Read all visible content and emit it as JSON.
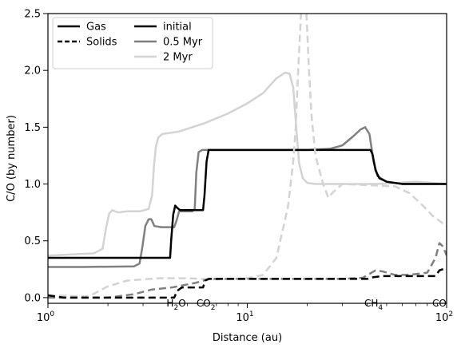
{
  "chart_data": {
    "type": "line",
    "xlabel": "Distance (au)",
    "ylabel": "C/O (by number)",
    "xscale": "log",
    "xlim": [
      1,
      100
    ],
    "ylim": [
      -0.05,
      2.5
    ],
    "grid": false,
    "legend_placement": "top-left",
    "x_ticks": [
      {
        "value": 1,
        "base": "10",
        "exp": "0"
      },
      {
        "value": 10,
        "base": "10",
        "exp": "1"
      },
      {
        "value": 100,
        "base": "10",
        "exp": "2"
      }
    ],
    "y_ticks": [
      "0.0",
      "0.5",
      "1.0",
      "1.5",
      "2.0",
      "2.5"
    ],
    "snowlines": [
      {
        "x": 4.4,
        "base": "H",
        "sub": "2",
        "after": "O"
      },
      {
        "x": 6.2,
        "base": "CO",
        "sub": "2",
        "after": ""
      },
      {
        "x": 43,
        "base": "CH",
        "sub": "4",
        "after": ""
      },
      {
        "x": 92,
        "base": "CO",
        "sub": "",
        "after": ""
      }
    ],
    "legend_phases": [
      {
        "label": "Gas",
        "dash": "solid"
      },
      {
        "label": "Solids",
        "dash": "dashed"
      }
    ],
    "legend_times": [
      {
        "label": "initial",
        "color": "#000000"
      },
      {
        "label": "0.5 Myr",
        "color": "#808080"
      },
      {
        "label": "2 Myr",
        "color": "#d3d3d3"
      }
    ],
    "series": [
      {
        "phase": "gas",
        "time": "2 Myr",
        "color": "#d3d3d3",
        "dash": "solid",
        "width": 2.5,
        "points": [
          [
            1,
            0.37
          ],
          [
            1.7,
            0.39
          ],
          [
            1.88,
            0.43
          ],
          [
            1.96,
            0.62
          ],
          [
            2.03,
            0.74
          ],
          [
            2.1,
            0.77
          ],
          [
            2.25,
            0.75
          ],
          [
            2.5,
            0.76
          ],
          [
            2.9,
            0.76
          ],
          [
            3.2,
            0.78
          ],
          [
            3.33,
            0.9
          ],
          [
            3.4,
            1.15
          ],
          [
            3.48,
            1.33
          ],
          [
            3.58,
            1.41
          ],
          [
            3.75,
            1.44
          ],
          [
            4.5,
            1.46
          ],
          [
            6,
            1.53
          ],
          [
            8,
            1.62
          ],
          [
            10,
            1.71
          ],
          [
            12,
            1.8
          ],
          [
            14,
            1.93
          ],
          [
            15.5,
            1.98
          ],
          [
            16.3,
            1.97
          ],
          [
            17,
            1.85
          ],
          [
            17.6,
            1.5
          ],
          [
            18.2,
            1.18
          ],
          [
            19,
            1.05
          ],
          [
            20,
            1.01
          ],
          [
            22,
            1.0
          ],
          [
            30,
            1.0
          ],
          [
            45,
            1.0
          ],
          [
            70,
            1.02
          ],
          [
            100,
            1.0
          ]
        ]
      },
      {
        "phase": "gas",
        "time": "0.5 Myr",
        "color": "#808080",
        "dash": "solid",
        "width": 2.5,
        "points": [
          [
            1,
            0.27
          ],
          [
            1.5,
            0.27
          ],
          [
            2.7,
            0.275
          ],
          [
            2.88,
            0.3
          ],
          [
            2.98,
            0.45
          ],
          [
            3.08,
            0.63
          ],
          [
            3.2,
            0.69
          ],
          [
            3.3,
            0.69
          ],
          [
            3.42,
            0.63
          ],
          [
            3.7,
            0.62
          ],
          [
            4.3,
            0.62
          ],
          [
            4.42,
            0.68
          ],
          [
            4.55,
            0.76
          ],
          [
            5.3,
            0.76
          ],
          [
            5.45,
            0.78
          ],
          [
            5.55,
            1.1
          ],
          [
            5.7,
            1.28
          ],
          [
            5.95,
            1.3
          ],
          [
            20,
            1.3
          ],
          [
            26,
            1.31
          ],
          [
            30,
            1.34
          ],
          [
            34,
            1.42
          ],
          [
            37,
            1.48
          ],
          [
            39,
            1.5
          ],
          [
            41,
            1.44
          ],
          [
            43,
            1.2
          ],
          [
            45,
            1.07
          ],
          [
            50,
            1.02
          ],
          [
            60,
            1.0
          ],
          [
            100,
            1.0
          ]
        ]
      },
      {
        "phase": "gas",
        "time": "initial",
        "color": "#000000",
        "dash": "solid",
        "width": 2.5,
        "points": [
          [
            1,
            0.35
          ],
          [
            4.1,
            0.35
          ],
          [
            4.15,
            0.5
          ],
          [
            4.25,
            0.73
          ],
          [
            4.35,
            0.81
          ],
          [
            4.45,
            0.79
          ],
          [
            4.6,
            0.77
          ],
          [
            6.0,
            0.77
          ],
          [
            6.1,
            0.9
          ],
          [
            6.25,
            1.2
          ],
          [
            6.4,
            1.3
          ],
          [
            41.5,
            1.3
          ],
          [
            42.5,
            1.26
          ],
          [
            44,
            1.12
          ],
          [
            46,
            1.05
          ],
          [
            50,
            1.02
          ],
          [
            60,
            1.0
          ],
          [
            100,
            1.0
          ]
        ]
      },
      {
        "phase": "solids",
        "time": "2 Myr",
        "color": "#d3d3d3",
        "dash": "dashed",
        "width": 2.5,
        "points": [
          [
            1,
            0.02
          ],
          [
            1.6,
            0.01
          ],
          [
            2,
            0.1
          ],
          [
            2.5,
            0.15
          ],
          [
            3.5,
            0.17
          ],
          [
            5,
            0.17
          ],
          [
            7,
            0.16
          ],
          [
            10,
            0.17
          ],
          [
            12,
            0.2
          ],
          [
            14,
            0.35
          ],
          [
            16,
            0.8
          ],
          [
            17,
            1.2
          ],
          [
            17.5,
            1.5
          ],
          [
            18,
            2.0
          ],
          [
            18.6,
            2.5
          ],
          [
            19.8,
            2.5
          ],
          [
            20.4,
            2.0
          ],
          [
            21,
            1.6
          ],
          [
            22,
            1.25
          ],
          [
            24,
            1.0
          ],
          [
            25.5,
            0.88
          ],
          [
            27,
            0.93
          ],
          [
            30,
            1.0
          ],
          [
            40,
            0.99
          ],
          [
            55,
            0.98
          ],
          [
            65,
            0.92
          ],
          [
            75,
            0.82
          ],
          [
            85,
            0.72
          ],
          [
            100,
            0.63
          ]
        ]
      },
      {
        "phase": "solids",
        "time": "0.5 Myr",
        "color": "#808080",
        "dash": "dashed",
        "width": 2.5,
        "points": [
          [
            1,
            0.0
          ],
          [
            2,
            0.0
          ],
          [
            2.7,
            0.03
          ],
          [
            3.3,
            0.07
          ],
          [
            4.2,
            0.09
          ],
          [
            5.5,
            0.13
          ],
          [
            6.5,
            0.165
          ],
          [
            10,
            0.165
          ],
          [
            20,
            0.165
          ],
          [
            30,
            0.165
          ],
          [
            38,
            0.175
          ],
          [
            44,
            0.24
          ],
          [
            48,
            0.23
          ],
          [
            55,
            0.2
          ],
          [
            65,
            0.2
          ],
          [
            80,
            0.22
          ],
          [
            88,
            0.35
          ],
          [
            92,
            0.48
          ],
          [
            96,
            0.45
          ],
          [
            100,
            0.37
          ]
        ]
      },
      {
        "phase": "solids",
        "time": "initial",
        "color": "#000000",
        "dash": "dashed",
        "width": 2.5,
        "points": [
          [
            1,
            0.02
          ],
          [
            1.2,
            0.0
          ],
          [
            4.3,
            0.0
          ],
          [
            4.45,
            0.06
          ],
          [
            4.7,
            0.09
          ],
          [
            6.0,
            0.09
          ],
          [
            6.15,
            0.15
          ],
          [
            6.4,
            0.165
          ],
          [
            20,
            0.165
          ],
          [
            40,
            0.165
          ],
          [
            43,
            0.18
          ],
          [
            48,
            0.19
          ],
          [
            88,
            0.19
          ],
          [
            92,
            0.24
          ],
          [
            100,
            0.26
          ]
        ]
      }
    ]
  }
}
